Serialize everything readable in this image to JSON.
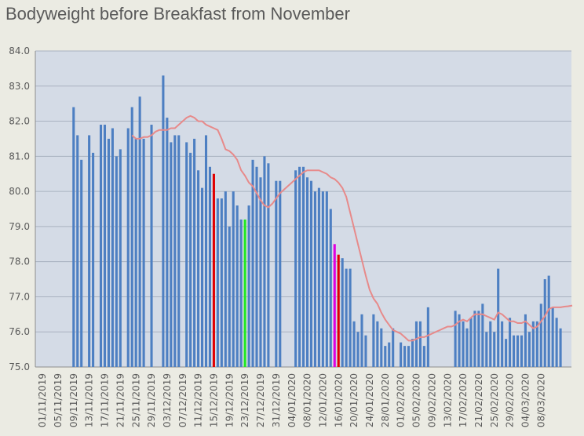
{
  "chart_data": {
    "type": "bar",
    "title": "Bodyweight before Breakfast from November",
    "xlabel": "",
    "ylabel": "",
    "ylim": [
      75,
      84
    ],
    "yticks": [
      "75.0",
      "76.0",
      "77.0",
      "78.0",
      "79.0",
      "80.0",
      "81.0",
      "82.0",
      "83.0",
      "84.0"
    ],
    "xticks": [
      "01/11/2019",
      "05/11/2019",
      "09/11/2019",
      "13/11/2019",
      "17/11/2019",
      "21/11/2019",
      "25/11/2019",
      "29/11/2019",
      "03/12/2019",
      "07/12/2019",
      "11/12/2019",
      "15/12/2019",
      "19/12/2019",
      "23/12/2019",
      "27/12/2019",
      "31/12/2019",
      "04/01/2020",
      "08/01/2020",
      "12/01/2020",
      "16/01/2020",
      "20/01/2020",
      "24/01/2020",
      "28/01/2020",
      "01/02/2020",
      "05/02/2020",
      "09/02/2020",
      "13/02/2020",
      "17/02/2020",
      "21/02/2020",
      "25/02/2020",
      "29/02/2020",
      "04/03/2020",
      "08/03/2020"
    ],
    "grid": true,
    "colors": {
      "bar": "#4d7fc2",
      "highlight_red": "#e00000",
      "highlight_green": "#22e822",
      "highlight_magenta": "#e000e0",
      "trend": "#e78a8a",
      "plot_bg": "#d4dbe6",
      "grid": "#a9b2c0"
    },
    "series": [
      {
        "values": [
          null,
          null,
          null,
          null,
          null,
          null,
          82.4,
          81.6,
          80.9,
          null,
          81.6,
          81.1,
          null,
          81.9,
          81.9,
          81.5,
          81.8,
          81.0,
          81.2,
          null,
          81.8,
          82.4,
          81.5,
          82.7,
          81.5,
          null,
          81.9,
          null,
          null,
          83.3,
          82.1,
          81.4,
          81.6,
          81.6,
          null,
          81.4,
          81.1,
          81.5,
          80.6,
          80.1,
          81.6,
          80.7,
          80.5,
          79.8,
          79.8,
          80.0,
          79.0,
          80.0,
          79.6,
          79.2,
          79.2,
          79.6,
          80.9,
          80.7,
          80.4,
          81.0,
          80.8,
          null,
          80.3,
          80.3,
          null,
          null,
          null,
          80.6,
          80.7,
          80.7,
          80.4,
          80.3,
          80.0,
          80.1,
          80.0,
          80.0,
          79.5,
          78.5,
          78.2,
          78.1,
          77.8,
          77.8,
          76.3,
          76.0,
          76.5,
          75.9,
          null,
          76.5,
          76.3,
          76.1,
          75.6,
          75.7,
          76.1,
          null,
          75.7,
          75.6,
          75.6,
          75.8,
          76.3,
          76.3,
          75.6,
          76.7,
          null,
          null,
          null,
          null,
          null,
          null,
          76.6,
          76.5,
          76.3,
          76.1,
          76.4,
          76.6,
          76.6,
          76.8,
          76.0,
          76.3,
          76.0,
          77.8,
          76.3,
          75.8,
          76.4,
          75.9,
          75.9,
          75.9,
          76.5,
          76.0,
          76.3,
          76.3,
          76.8,
          77.5,
          77.6,
          76.7,
          76.4,
          76.1,
          null
        ],
        "highlights": {
          "42": "red",
          "50": "green",
          "73": "magenta",
          "74": "red",
          "82": "green"
        }
      },
      {
        "type": "line",
        "x_start_index": 21,
        "values": [
          81.6,
          81.5,
          81.5,
          81.55,
          81.55,
          81.6,
          81.7,
          81.75,
          81.75,
          81.75,
          81.8,
          81.8,
          81.9,
          82.0,
          82.1,
          82.15,
          82.1,
          82.0,
          82.0,
          81.9,
          81.85,
          81.8,
          81.75,
          81.5,
          81.2,
          81.15,
          81.05,
          80.9,
          80.6,
          80.45,
          80.25,
          80.15,
          79.95,
          79.75,
          79.6,
          79.55,
          79.65,
          79.8,
          79.95,
          80.05,
          80.15,
          80.25,
          80.35,
          80.45,
          80.55,
          80.6,
          80.6,
          80.6,
          80.6,
          80.55,
          80.5,
          80.4,
          80.35,
          80.25,
          80.1,
          79.85,
          79.4,
          78.95,
          78.5,
          78.05,
          77.6,
          77.2,
          76.95,
          76.8,
          76.55,
          76.35,
          76.2,
          76.05,
          76.0,
          75.95,
          75.85,
          75.75,
          75.75,
          75.8,
          75.85,
          75.85,
          75.9,
          75.95,
          76.0,
          76.05,
          76.1,
          76.15,
          76.15,
          76.2,
          76.3,
          76.35,
          76.3,
          76.4,
          76.5,
          76.5,
          76.5,
          76.45,
          76.4,
          76.35,
          76.55,
          76.5,
          76.4,
          76.3,
          76.3,
          76.25,
          76.25,
          76.3,
          76.2,
          76.1,
          76.15,
          76.3,
          76.45,
          76.65,
          76.7,
          76.7,
          76.7,
          76.72,
          76.73,
          76.75
        ]
      }
    ]
  }
}
